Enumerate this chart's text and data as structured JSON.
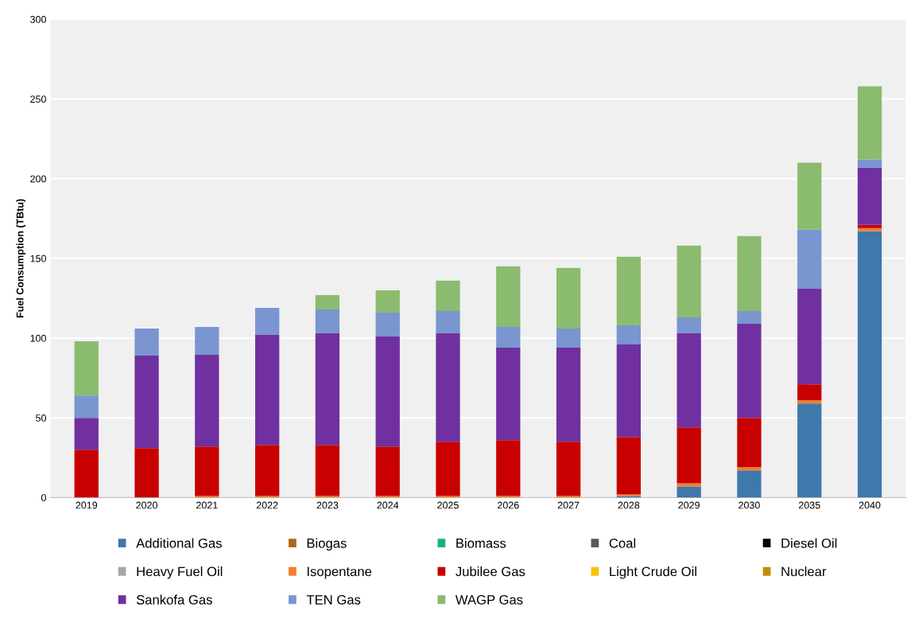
{
  "chart_data": {
    "type": "bar",
    "stacked": true,
    "ylabel": "Fuel Consumption (TBtu)",
    "categories": [
      "2019",
      "2020",
      "2021",
      "2022",
      "2023",
      "2024",
      "2025",
      "2026",
      "2027",
      "2028",
      "2029",
      "2030",
      "2035",
      "2040"
    ],
    "ylim": [
      0,
      300
    ],
    "yticks": [
      0,
      50,
      100,
      150,
      200,
      250,
      300
    ],
    "grid": "y",
    "legend": "bottom",
    "series": [
      {
        "name": "Additional Gas",
        "color": "#3f78ab",
        "values": [
          0,
          0,
          0,
          0,
          0,
          0,
          0,
          0,
          0,
          1,
          7,
          17,
          59,
          167
        ]
      },
      {
        "name": "Biogas",
        "color": "#b5651d",
        "values": [
          0,
          0,
          0,
          0,
          0,
          0,
          0,
          0,
          0,
          0,
          0,
          0,
          0,
          0
        ]
      },
      {
        "name": "Biomass",
        "color": "#19b27b",
        "values": [
          0,
          0,
          0,
          0,
          0,
          0,
          0,
          0,
          0,
          0,
          0,
          0,
          0,
          0
        ]
      },
      {
        "name": "Coal",
        "color": "#595959",
        "values": [
          0,
          0,
          0,
          0,
          0,
          0,
          0,
          0,
          0,
          0,
          0,
          0,
          0,
          0
        ]
      },
      {
        "name": "Diesel Oil",
        "color": "#000000",
        "values": [
          0,
          0,
          0,
          0,
          0,
          0,
          0,
          0,
          0,
          0,
          0,
          0,
          0,
          0
        ]
      },
      {
        "name": "Heavy Fuel Oil",
        "color": "#a6a6a6",
        "values": [
          0,
          0,
          0,
          0,
          0,
          0,
          0,
          0,
          0,
          0,
          0,
          0,
          0,
          0
        ]
      },
      {
        "name": "Isopentane",
        "color": "#f07f2e",
        "values": [
          0,
          0,
          1,
          1,
          1,
          1,
          1,
          1,
          1,
          1,
          2,
          2,
          2,
          2
        ]
      },
      {
        "name": "Jubilee Gas",
        "color": "#c80000",
        "values": [
          30,
          31,
          31,
          32,
          32,
          31,
          34,
          35,
          34,
          36,
          35,
          31,
          10,
          2
        ]
      },
      {
        "name": "Light Crude Oil",
        "color": "#f5c200",
        "values": [
          0,
          0,
          0,
          0,
          0,
          0,
          0,
          0,
          0,
          0,
          0,
          0,
          0,
          0
        ]
      },
      {
        "name": "Nuclear",
        "color": "#bf9000",
        "values": [
          0,
          0,
          0,
          0,
          0,
          0,
          0,
          0,
          0,
          0,
          0,
          0,
          0,
          0
        ]
      },
      {
        "name": "Sankofa Gas",
        "color": "#7030a0",
        "values": [
          20,
          58,
          57.5,
          69,
          70,
          69,
          68,
          58,
          59,
          58,
          59,
          59,
          60,
          36
        ]
      },
      {
        "name": "TEN Gas",
        "color": "#7a95d0",
        "values": [
          14,
          17,
          17.5,
          17,
          15,
          15,
          14,
          13,
          12,
          12,
          10,
          8,
          37,
          5
        ]
      },
      {
        "name": "WAGP Gas",
        "color": "#8bbb6f",
        "values": [
          34,
          0,
          0,
          0,
          9,
          14,
          19,
          38,
          38,
          43,
          45,
          47,
          42,
          46
        ]
      }
    ]
  }
}
